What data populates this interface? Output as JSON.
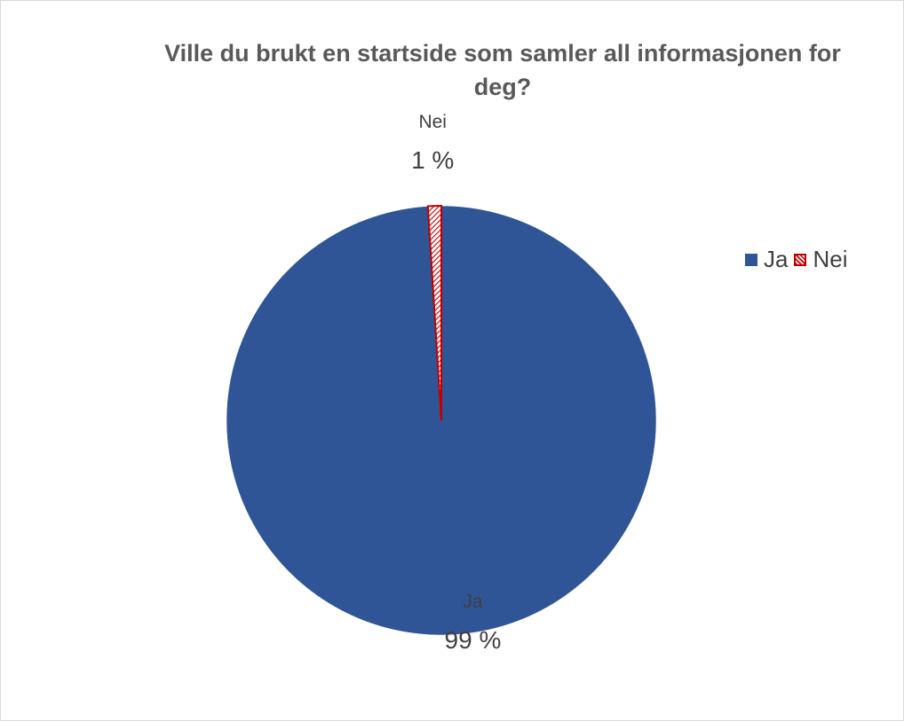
{
  "chart_data": {
    "type": "pie",
    "title": "Ville du brukt en startside som samler all informasjonen for deg?",
    "categories": [
      "Ja",
      "Nei"
    ],
    "values": [
      99,
      1
    ],
    "data_labels": [
      {
        "category": "Ja",
        "value_text": "99 %"
      },
      {
        "category": "Nei",
        "value_text": "1 %"
      }
    ],
    "colors": {
      "Ja": "#2f5597",
      "Nei": "#c00000"
    },
    "fills": {
      "Ja": "solid",
      "Nei": "diagonal-hatch"
    },
    "legend_position": "right",
    "legend": [
      {
        "label": "Ja",
        "color": "#2f5597",
        "fill": "solid"
      },
      {
        "label": "Nei",
        "color": "#c00000",
        "fill": "diagonal-hatch"
      }
    ]
  }
}
